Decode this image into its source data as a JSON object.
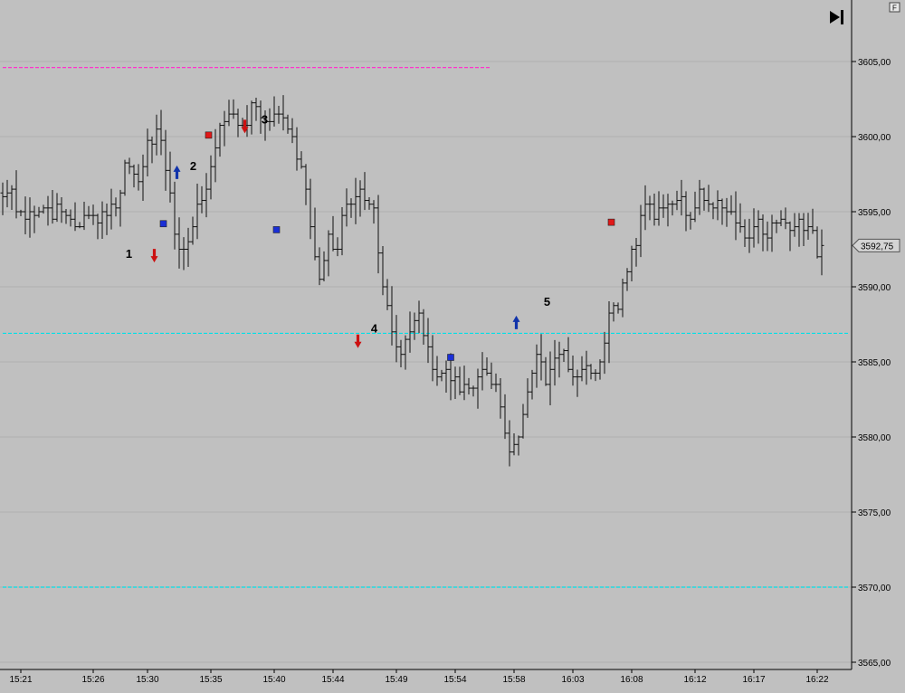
{
  "chart_data": {
    "type": "ohlc",
    "title": "",
    "xlabel": "",
    "ylabel": "",
    "ylim": [
      3565,
      3608.4
    ],
    "grid": true,
    "price_ticks": [
      "3565,00",
      "3570,00",
      "3575,00",
      "3580,00",
      "3585,00",
      "3590,00",
      "3595,00",
      "3600,00",
      "3605,00"
    ],
    "time_ticks": [
      {
        "label": "15:21",
        "bar": 4
      },
      {
        "label": "15:26",
        "bar": 20
      },
      {
        "label": "15:30",
        "bar": 32
      },
      {
        "label": "15:35",
        "bar": 46
      },
      {
        "label": "15:40",
        "bar": 60
      },
      {
        "label": "15:44",
        "bar": 73
      },
      {
        "label": "15:49",
        "bar": 87
      },
      {
        "label": "15:54",
        "bar": 100
      },
      {
        "label": "15:58",
        "bar": 113
      },
      {
        "label": "16:03",
        "bar": 126
      },
      {
        "label": "16:08",
        "bar": 139
      },
      {
        "label": "16:12",
        "bar": 153
      },
      {
        "label": "16:17",
        "bar": 166
      },
      {
        "label": "16:22",
        "bar": 180
      }
    ],
    "last_price": "3592,75",
    "last_price_value": 3592.75,
    "reference_lines": [
      {
        "value": 3604.6,
        "color": "#ff33cc",
        "style": "dashed",
        "from_bar": 0,
        "to_bar": 108
      },
      {
        "value": 3586.9,
        "color": "#00e0e8",
        "style": "dashed",
        "from_bar": 0,
        "to_bar": 187
      },
      {
        "value": 3570.0,
        "color": "#00e0e8",
        "style": "dashed",
        "from_bar": 0,
        "to_bar": 187
      }
    ],
    "anchors": [
      [
        0,
        3596.0
      ],
      [
        2,
        3596.5
      ],
      [
        3,
        3595.0
      ],
      [
        6,
        3594.9
      ],
      [
        10,
        3595.3
      ],
      [
        14,
        3594.8
      ],
      [
        17,
        3594.0
      ],
      [
        20,
        3594.8
      ],
      [
        25,
        3595.3
      ],
      [
        27,
        3598.3
      ],
      [
        30,
        3597.0
      ],
      [
        32,
        3599.7
      ],
      [
        34,
        3600.5
      ],
      [
        36,
        3597.7
      ],
      [
        38,
        3593.5
      ],
      [
        40,
        3592.4
      ],
      [
        42,
        3594.0
      ],
      [
        44,
        3595.7
      ],
      [
        46,
        3598.0
      ],
      [
        48,
        3600.7
      ],
      [
        50,
        3601.4
      ],
      [
        53,
        3600.8
      ],
      [
        56,
        3601.9
      ],
      [
        58,
        3601.0
      ],
      [
        60,
        3601.6
      ],
      [
        62,
        3601.3
      ],
      [
        64,
        3600.0
      ],
      [
        66,
        3598.0
      ],
      [
        68,
        3594.0
      ],
      [
        70,
        3590.5
      ],
      [
        72,
        3593.5
      ],
      [
        74,
        3592.6
      ],
      [
        76,
        3595.5
      ],
      [
        78,
        3596.0
      ],
      [
        80,
        3595.8
      ],
      [
        82,
        3595.2
      ],
      [
        84,
        3590.0
      ],
      [
        86,
        3587.0
      ],
      [
        88,
        3585.5
      ],
      [
        90,
        3587.0
      ],
      [
        92,
        3588.3
      ],
      [
        94,
        3586.0
      ],
      [
        96,
        3584.0
      ],
      [
        98,
        3584.5
      ],
      [
        100,
        3584.0
      ],
      [
        102,
        3583.5
      ],
      [
        104,
        3583.2
      ],
      [
        106,
        3584.4
      ],
      [
        108,
        3583.5
      ],
      [
        110,
        3582.0
      ],
      [
        112,
        3579.0
      ],
      [
        114,
        3580.0
      ],
      [
        116,
        3583.0
      ],
      [
        118,
        3585.5
      ],
      [
        120,
        3583.6
      ],
      [
        122,
        3585.3
      ],
      [
        124,
        3585.7
      ],
      [
        126,
        3584.0
      ],
      [
        128,
        3584.6
      ],
      [
        130,
        3584.3
      ],
      [
        132,
        3585.0
      ],
      [
        134,
        3588.2
      ],
      [
        136,
        3588.5
      ],
      [
        138,
        3591.0
      ],
      [
        140,
        3592.8
      ],
      [
        142,
        3595.5
      ],
      [
        144,
        3594.6
      ],
      [
        146,
        3595.2
      ],
      [
        148,
        3595.5
      ],
      [
        150,
        3596.0
      ],
      [
        152,
        3594.6
      ],
      [
        154,
        3596.5
      ],
      [
        156,
        3595.6
      ],
      [
        158,
        3595.8
      ],
      [
        160,
        3595.0
      ],
      [
        162,
        3594.3
      ],
      [
        164,
        3593.2
      ],
      [
        166,
        3594.0
      ],
      [
        168,
        3593.5
      ],
      [
        170,
        3594.2
      ],
      [
        172,
        3594.6
      ],
      [
        174,
        3593.8
      ],
      [
        176,
        3594.4
      ],
      [
        178,
        3594.0
      ],
      [
        180,
        3592.0
      ],
      [
        181,
        3592.75
      ]
    ],
    "signals": [
      {
        "label": "1",
        "kind": "down-arrow",
        "bar": 33.5,
        "price": 3591.8,
        "color": "#cc1111"
      },
      {
        "label": "2",
        "kind": "up-arrow",
        "bar": 38.5,
        "price": 3597.9,
        "color": "#1133aa"
      },
      {
        "label": "3",
        "kind": "down-arrow",
        "bar": 53.5,
        "price": 3600.4,
        "color": "#cc1111"
      },
      {
        "label": "4",
        "kind": "down-arrow",
        "bar": 78.5,
        "price": 3586.1,
        "color": "#cc1111"
      },
      {
        "label": "5",
        "kind": "up-arrow",
        "bar": 113.5,
        "price": 3587.9,
        "color": "#1133aa"
      }
    ],
    "markers": [
      {
        "bar": 35.5,
        "price": 3594.2,
        "color": "#1a2fd6"
      },
      {
        "bar": 45.5,
        "price": 3600.1,
        "color": "#e01818"
      },
      {
        "bar": 60.5,
        "price": 3593.8,
        "color": "#1a2fd6"
      },
      {
        "bar": 99,
        "price": 3585.3,
        "color": "#1a2fd6"
      },
      {
        "bar": 134.5,
        "price": 3594.3,
        "color": "#e01818"
      }
    ]
  },
  "ui": {
    "corner_badge": "F",
    "scroll_end_icon": "skip-to-end-icon"
  }
}
